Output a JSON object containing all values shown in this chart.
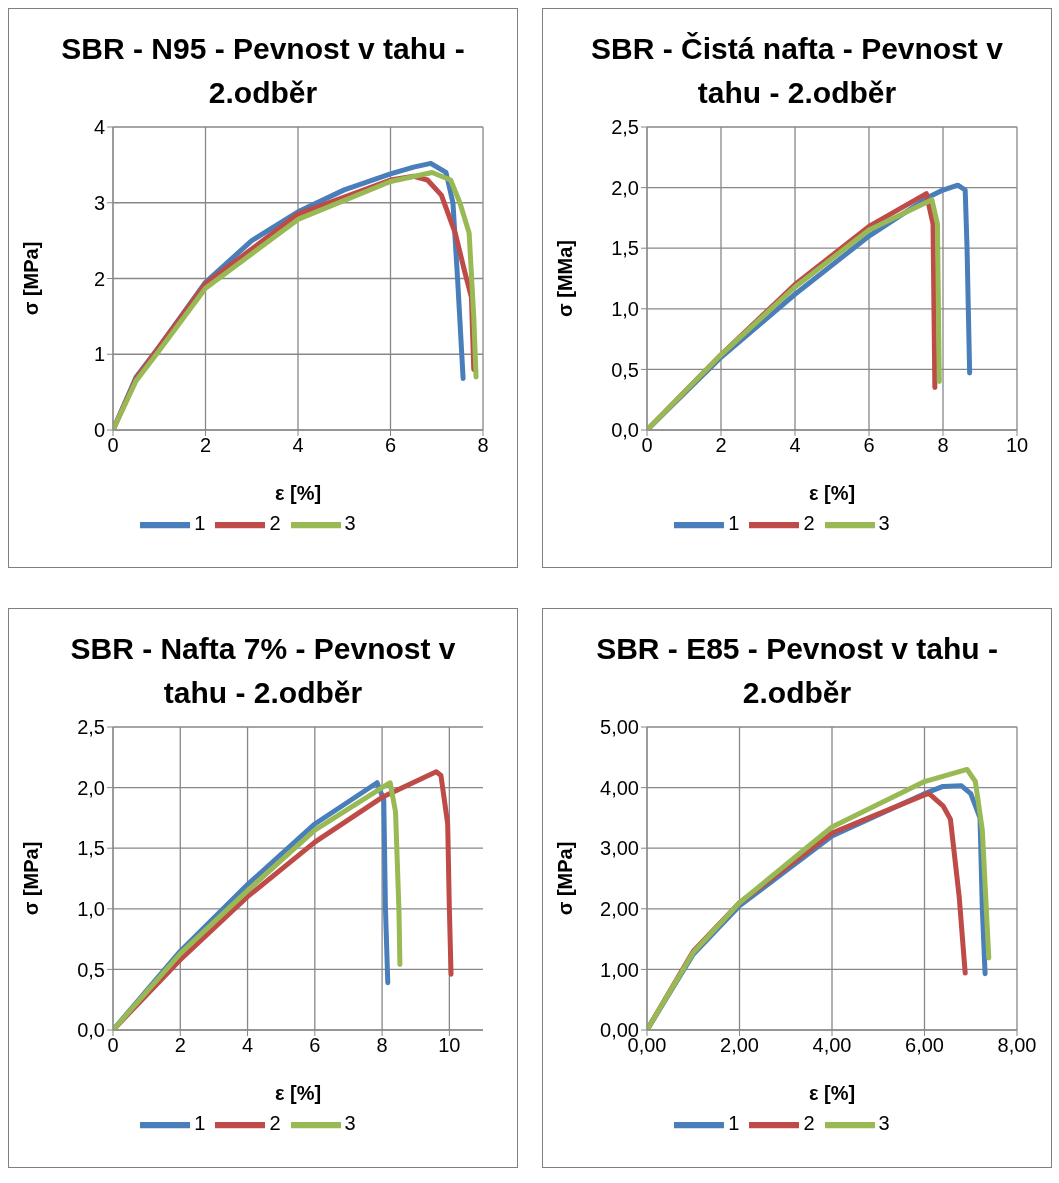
{
  "chart_data": [
    {
      "type": "line",
      "title": "SBR - N95 - Pevnost v tahu - 2.odběr",
      "xlabel": "ε [%]",
      "ylabel": "σ [MPa]",
      "xlim": [
        0,
        8
      ],
      "xticks": [
        0,
        2,
        4,
        6,
        8
      ],
      "ylim": [
        0,
        4
      ],
      "yticks": [
        0,
        1,
        2,
        3,
        4
      ],
      "grid": true,
      "legend": "bottom",
      "series": [
        {
          "name": "1",
          "color": "#4a7ebb",
          "x": [
            0,
            0.5,
            1,
            2,
            3,
            4,
            5,
            6,
            6.5,
            6.87,
            7.2,
            7.35,
            7.45,
            7.57
          ],
          "values": [
            0,
            0.7,
            1.1,
            1.95,
            2.5,
            2.88,
            3.17,
            3.38,
            3.47,
            3.52,
            3.4,
            3.0,
            2.0,
            0.68
          ]
        },
        {
          "name": "2",
          "color": "#be4b48",
          "x": [
            0,
            0.5,
            1,
            2,
            4,
            6,
            6.5,
            6.8,
            7.1,
            7.4,
            7.6,
            7.75,
            7.8
          ],
          "values": [
            0,
            0.68,
            1.1,
            1.93,
            2.85,
            3.3,
            3.35,
            3.3,
            3.1,
            2.6,
            2.1,
            1.75,
            0.8
          ]
        },
        {
          "name": "3",
          "color": "#98b954",
          "x": [
            0,
            0.5,
            1,
            2,
            4,
            6,
            6.9,
            7.3,
            7.5,
            7.7,
            7.8,
            7.85
          ],
          "values": [
            0,
            0.65,
            1.05,
            1.87,
            2.78,
            3.28,
            3.4,
            3.3,
            3.0,
            2.6,
            1.5,
            0.7
          ]
        }
      ]
    },
    {
      "type": "line",
      "title": "SBR - Čistá nafta - Pevnost v tahu - 2.odběr",
      "xlabel": "ε [%]",
      "ylabel": "σ [MMa]",
      "xlim": [
        0,
        10
      ],
      "xticks": [
        0,
        2,
        4,
        6,
        8,
        10
      ],
      "ylim": [
        0,
        2.5
      ],
      "yticks": [
        {
          "value": 0,
          "label": "0,0"
        },
        {
          "value": 0.5,
          "label": "0,5"
        },
        {
          "value": 1,
          "label": "1,0"
        },
        {
          "value": 1.5,
          "label": "1,5"
        },
        {
          "value": 2,
          "label": "2,0"
        },
        {
          "value": 2.5,
          "label": "2,5"
        }
      ],
      "grid": true,
      "legend": "bottom",
      "series": [
        {
          "name": "1",
          "color": "#4a7ebb",
          "x": [
            0,
            2,
            4,
            6,
            7.6,
            8,
            8.4,
            8.6,
            8.65,
            8.72
          ],
          "values": [
            0,
            0.6,
            1.12,
            1.6,
            1.92,
            1.98,
            2.02,
            1.98,
            1.5,
            0.47
          ]
        },
        {
          "name": "2",
          "color": "#be4b48",
          "x": [
            0,
            2,
            4,
            6,
            7.55,
            7.73,
            7.78
          ],
          "values": [
            0,
            0.62,
            1.2,
            1.68,
            1.95,
            1.7,
            0.35
          ]
        },
        {
          "name": "3",
          "color": "#98b954",
          "x": [
            0,
            2,
            4,
            6,
            7.7,
            7.85,
            7.9
          ],
          "values": [
            0,
            0.62,
            1.18,
            1.65,
            1.9,
            1.7,
            0.4
          ]
        }
      ]
    },
    {
      "type": "line",
      "title": "SBR - Nafta 7% - Pevnost v tahu - 2.odběr",
      "xlabel": "ε [%]",
      "ylabel": "σ [MPa]",
      "xlim": [
        0,
        11
      ],
      "xticks": [
        0,
        2,
        4,
        6,
        8,
        10
      ],
      "ylim": [
        0,
        2.5
      ],
      "yticks": [
        {
          "value": 0,
          "label": "0,0"
        },
        {
          "value": 0.5,
          "label": "0,5"
        },
        {
          "value": 1,
          "label": "1,0"
        },
        {
          "value": 1.5,
          "label": "1,5"
        },
        {
          "value": 2,
          "label": "2,0"
        },
        {
          "value": 2.5,
          "label": "2,5"
        }
      ],
      "grid": true,
      "legend": "bottom",
      "series": [
        {
          "name": "1",
          "color": "#4a7ebb",
          "x": [
            0,
            2,
            4,
            6,
            7.85,
            8.05,
            8.1,
            8.17
          ],
          "values": [
            0,
            0.65,
            1.2,
            1.7,
            2.04,
            1.9,
            1.0,
            0.39
          ]
        },
        {
          "name": "2",
          "color": "#be4b48",
          "x": [
            0,
            2,
            4,
            6,
            8,
            9.61,
            9.75,
            9.95,
            10,
            10.05
          ],
          "values": [
            0,
            0.58,
            1.1,
            1.55,
            1.92,
            2.13,
            2.1,
            1.7,
            1.0,
            0.46
          ]
        },
        {
          "name": "3",
          "color": "#98b954",
          "x": [
            0,
            2,
            4,
            6,
            8,
            8.24,
            8.4,
            8.5,
            8.53
          ],
          "values": [
            0,
            0.63,
            1.15,
            1.65,
            2.0,
            2.04,
            1.8,
            1.0,
            0.54
          ]
        }
      ]
    },
    {
      "type": "line",
      "title": "SBR - E85 - Pevnost v tahu - 2.odběr",
      "xlabel": "ε [%]",
      "ylabel": "σ [MPa]",
      "xlim": [
        0,
        8
      ],
      "xticks": [
        {
          "value": 0,
          "label": "0,00"
        },
        {
          "value": 2,
          "label": "2,00"
        },
        {
          "value": 4,
          "label": "4,00"
        },
        {
          "value": 6,
          "label": "6,00"
        },
        {
          "value": 8,
          "label": "8,00"
        }
      ],
      "ylim": [
        0,
        5
      ],
      "yticks": [
        {
          "value": 0,
          "label": "0,00"
        },
        {
          "value": 1,
          "label": "1,00"
        },
        {
          "value": 2,
          "label": "2,00"
        },
        {
          "value": 3,
          "label": "3,00"
        },
        {
          "value": 4,
          "label": "4,00"
        },
        {
          "value": 5,
          "label": "5,00"
        }
      ],
      "grid": true,
      "legend": "bottom",
      "series": [
        {
          "name": "1",
          "color": "#4a7ebb",
          "x": [
            0,
            1,
            2,
            4,
            6,
            6.4,
            6.8,
            7.0,
            7.2,
            7.25,
            7.31
          ],
          "values": [
            0,
            1.25,
            2.05,
            3.2,
            3.9,
            4.02,
            4.03,
            3.9,
            3.5,
            2.0,
            0.93
          ]
        },
        {
          "name": "2",
          "color": "#be4b48",
          "x": [
            0,
            1,
            2,
            4,
            6,
            6.1,
            6.4,
            6.56,
            6.75,
            6.88
          ],
          "values": [
            0,
            1.3,
            2.1,
            3.25,
            3.88,
            3.9,
            3.7,
            3.48,
            2.2,
            0.94
          ]
        },
        {
          "name": "3",
          "color": "#98b954",
          "x": [
            0,
            1,
            2,
            4,
            6,
            6.92,
            7.1,
            7.25,
            7.39
          ],
          "values": [
            0,
            1.28,
            2.1,
            3.35,
            4.1,
            4.3,
            4.1,
            3.3,
            1.19
          ]
        }
      ]
    }
  ]
}
